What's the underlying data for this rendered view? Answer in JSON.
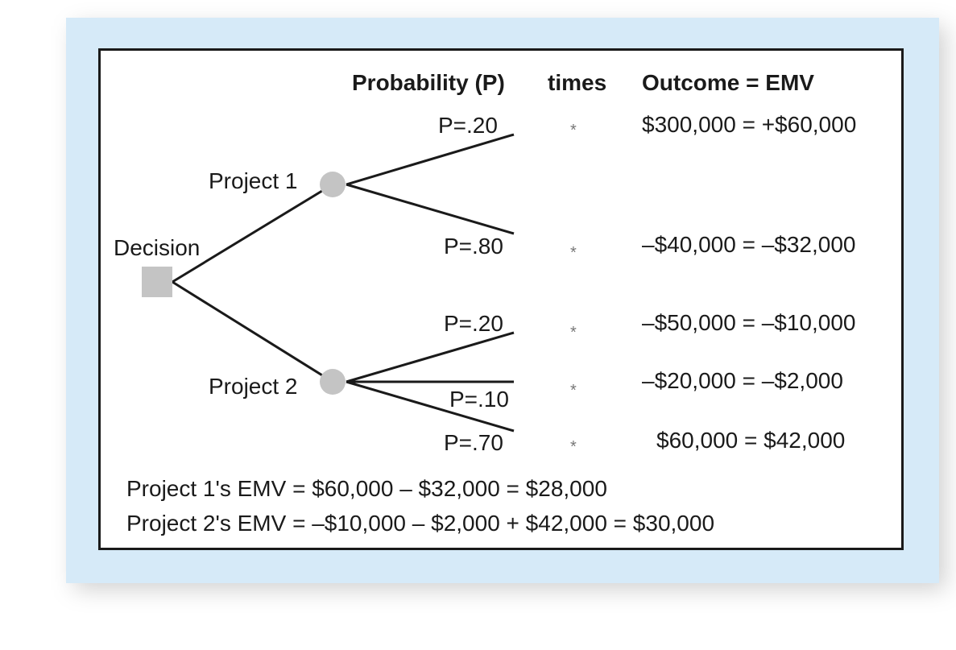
{
  "headers": {
    "probability": "Probability (P)",
    "times": "times",
    "outcome_emv": "Outcome = EMV"
  },
  "decision_label": "Decision",
  "projects": [
    {
      "label": "Project 1",
      "branches": [
        {
          "probability": "P=.20",
          "operator": "*",
          "result": "$300,000 = +$60,000"
        },
        {
          "probability": "P=.80",
          "operator": "*",
          "result": "–$40,000 = –$32,000"
        }
      ]
    },
    {
      "label": "Project 2",
      "branches": [
        {
          "probability": "P=.20",
          "operator": "*",
          "result": "–$50,000 = –$10,000"
        },
        {
          "probability": "P=.10",
          "operator": "*",
          "result": "–$20,000 = –$2,000"
        },
        {
          "probability": "P=.70",
          "operator": "*",
          "result": "$60,000 = $42,000"
        }
      ]
    }
  ],
  "summary": [
    "Project 1's EMV = $60,000 – $32,000 = $28,000",
    "Project 2's EMV = –$10,000 – $2,000 + $42,000 = $30,000"
  ],
  "colors": {
    "background_panel": "#d6eaf8",
    "frame_border": "#1a1a1a",
    "node_fill": "#c4c4c4",
    "line": "#1a1a1a"
  }
}
